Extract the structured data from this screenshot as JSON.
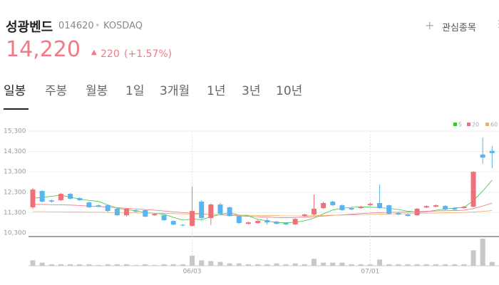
{
  "header": {
    "name": "성광벤드",
    "code": "014620",
    "market": "KOSDAQ",
    "price": "14,220",
    "change": "220",
    "change_pct": "(+1.57%)",
    "watch": "관심종목",
    "tabs": [
      "일봉",
      "주봉",
      "월봉",
      "1일",
      "3개월",
      "1년",
      "3년",
      "10년"
    ]
  },
  "chart_data": {
    "type": "candlestick",
    "up_color": "#f0707a",
    "down_color": "#5ab4f0",
    "ylim": [
      10300,
      15300
    ],
    "yticks": [
      {
        "value": 15300,
        "label": "15,300"
      },
      {
        "value": 14300,
        "label": "14,300"
      },
      {
        "value": 13300,
        "label": "13,300"
      },
      {
        "value": 12300,
        "label": "12,300"
      },
      {
        "value": 11300,
        "label": "11,300"
      },
      {
        "value": 10300,
        "label": "10,300"
      }
    ],
    "categories": [
      null,
      null,
      null,
      null,
      null,
      null,
      null,
      null,
      null,
      null,
      null,
      null,
      null,
      null,
      null,
      null,
      null,
      "06/03",
      null,
      null,
      null,
      null,
      null,
      null,
      null,
      null,
      null,
      null,
      null,
      null,
      null,
      null,
      null,
      null,
      null,
      null,
      "07/01",
      null,
      null,
      null,
      null,
      null,
      null,
      null,
      null,
      null,
      null,
      null,
      null,
      null
    ],
    "open": [
      11560,
      12360,
      11900,
      11910,
      12220,
      12010,
      11800,
      11660,
      11660,
      11490,
      11170,
      11410,
      11420,
      11170,
      11170,
      10890,
      10700,
      10650,
      11840,
      11030,
      11700,
      11560,
      11130,
      10750,
      10790,
      10930,
      10860,
      10790,
      10720,
      11140,
      11210,
      11520,
      11840,
      11660,
      11520,
      11520,
      11660,
      11770,
      11660,
      11280,
      11210,
      11170,
      11550,
      11590,
      11630,
      11520,
      11520,
      11590,
      14150,
      14330
    ],
    "high": [
      12500,
      12400,
      11950,
      12260,
      12260,
      12050,
      11840,
      11700,
      11700,
      11520,
      11530,
      11450,
      11450,
      11280,
      11200,
      10920,
      10740,
      12570,
      11910,
      11750,
      11780,
      11600,
      11170,
      10860,
      10930,
      11030,
      10890,
      10820,
      11030,
      11240,
      12190,
      11840,
      11880,
      11700,
      11560,
      11630,
      11800,
      12680,
      11700,
      11320,
      11240,
      11520,
      11660,
      11700,
      11660,
      11560,
      11630,
      13330,
      14990,
      14570
    ],
    "low": [
      11490,
      11800,
      11780,
      11870,
      11940,
      11870,
      11530,
      11560,
      11330,
      11140,
      11100,
      11310,
      11080,
      11140,
      10900,
      10680,
      10640,
      10620,
      10990,
      10700,
      11200,
      11100,
      10750,
      10720,
      10760,
      10720,
      10720,
      10690,
      10690,
      11100,
      11170,
      11490,
      11630,
      11380,
      11420,
      11490,
      11630,
      11490,
      11200,
      11170,
      11100,
      11140,
      11520,
      11560,
      11420,
      11420,
      11490,
      11560,
      13690,
      13480
    ],
    "close": [
      12430,
      11840,
      11840,
      12220,
      11980,
      11910,
      11560,
      11590,
      11380,
      11170,
      11490,
      11350,
      11100,
      11240,
      10930,
      10710,
      10680,
      11380,
      11030,
      11700,
      11240,
      11130,
      10790,
      10820,
      10890,
      10820,
      10750,
      10720,
      10990,
      11210,
      11490,
      11770,
      11660,
      11420,
      11450,
      11590,
      11730,
      11520,
      11240,
      11210,
      11140,
      11490,
      11620,
      11660,
      11450,
      11450,
      11590,
      13300,
      14000,
      14220
    ],
    "volume": [
      7,
      4,
      2,
      2,
      2,
      2,
      2,
      1,
      2,
      2,
      2,
      1,
      2,
      1,
      2,
      2,
      2,
      13,
      7,
      6,
      5,
      3,
      3,
      2,
      2,
      2,
      3,
      2,
      3,
      2,
      9,
      4,
      4,
      4,
      2,
      2,
      2,
      8,
      2,
      2,
      2,
      2,
      2,
      2,
      2,
      2,
      2,
      20,
      35,
      5
    ],
    "volume_color": "#c8c8c8",
    "series": [
      {
        "name": "5",
        "color": "#3cc43c",
        "values": [
          12000,
          12050,
          12100,
          12150,
          12060,
          11960,
          11900,
          11850,
          11680,
          11520,
          11440,
          11400,
          11300,
          11270,
          11220,
          11070,
          10930,
          10990,
          10950,
          11100,
          11210,
          11300,
          11180,
          11140,
          10970,
          10890,
          10810,
          10800,
          10830,
          10900,
          11030,
          11240,
          11430,
          11510,
          11560,
          11580,
          11570,
          11540,
          11510,
          11450,
          11370,
          11320,
          11340,
          11420,
          11470,
          11530,
          11550,
          11890,
          12360,
          12890
        ]
      },
      {
        "name": "20",
        "color": "#f07080",
        "values": [
          11700,
          11700,
          11690,
          11680,
          11670,
          11650,
          11620,
          11600,
          11570,
          11540,
          11510,
          11480,
          11450,
          11420,
          11380,
          11340,
          11300,
          11270,
          11240,
          11210,
          11190,
          11170,
          11140,
          11120,
          11100,
          11080,
          11060,
          11050,
          11060,
          11080,
          11100,
          11130,
          11160,
          11190,
          11220,
          11250,
          11280,
          11300,
          11310,
          11320,
          11330,
          11340,
          11360,
          11380,
          11390,
          11400,
          11420,
          11500,
          11620,
          11770
        ]
      },
      {
        "name": "60",
        "color": "#f0b060",
        "values": [
          11350,
          11350,
          11340,
          11340,
          11330,
          11330,
          11320,
          11320,
          11310,
          11300,
          11300,
          11290,
          11280,
          11270,
          11260,
          11250,
          11240,
          11230,
          11220,
          11210,
          11200,
          11190,
          11180,
          11170,
          11160,
          11150,
          11150,
          11140,
          11140,
          11140,
          11150,
          11160,
          11170,
          11180,
          11190,
          11200,
          11210,
          11220,
          11230,
          11240,
          11250,
          11260,
          11270,
          11280,
          11290,
          11300,
          11310,
          11330,
          11360,
          11400
        ]
      }
    ]
  }
}
